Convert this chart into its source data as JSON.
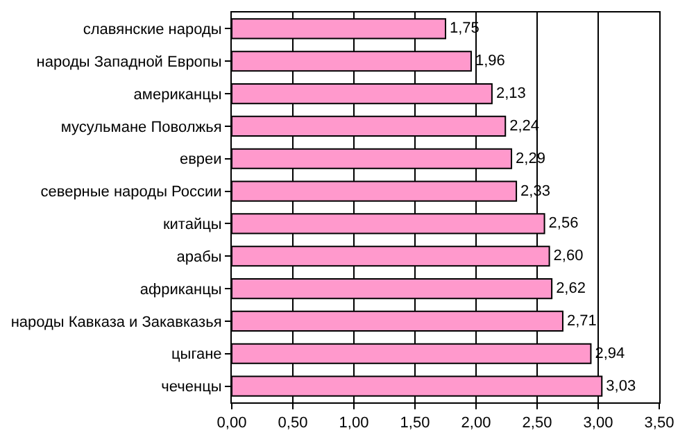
{
  "chart_data": {
    "type": "bar",
    "orientation": "horizontal",
    "categories": [
      "славянские народы",
      "народы Западной Европы",
      "американцы",
      "мусульмане Поволжья",
      "евреи",
      "северные народы России",
      "китайцы",
      "арабы",
      "африканцы",
      "народы Кавказа и Закавказья",
      "цыгане",
      "чеченцы"
    ],
    "values": [
      1.75,
      1.96,
      2.13,
      2.24,
      2.29,
      2.33,
      2.56,
      2.6,
      2.62,
      2.71,
      2.94,
      3.03
    ],
    "value_labels": [
      "1,75",
      "1,96",
      "2,13",
      "2,24",
      "2,29",
      "2,33",
      "2,56",
      "2,60",
      "2,62",
      "2,71",
      "2,94",
      "3,03"
    ],
    "color": "#ff99cc",
    "xlim": [
      0,
      3.5
    ],
    "xticks": [
      {
        "value": 0,
        "label": "0,00"
      },
      {
        "value": 0.5,
        "label": "0,50"
      },
      {
        "value": 1,
        "label": "1,00"
      },
      {
        "value": 1.5,
        "label": "1,50"
      },
      {
        "value": 2,
        "label": "2,00"
      },
      {
        "value": 2.5,
        "label": "2,50"
      },
      {
        "value": 3,
        "label": "3,00"
      },
      {
        "value": 3.5,
        "label": "3,50"
      }
    ],
    "grid": "x",
    "legend": false
  }
}
